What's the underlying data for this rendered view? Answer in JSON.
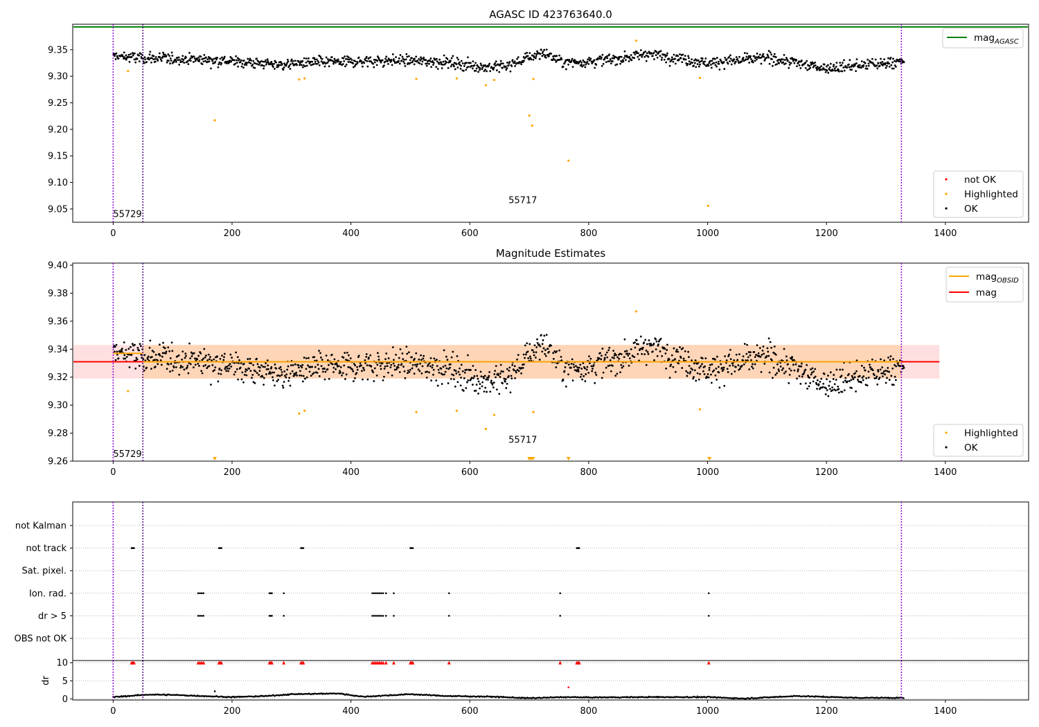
{
  "chart_data": [
    {
      "type": "scatter",
      "title": "AGASC ID 423763640.0",
      "xlim": [
        -68,
        1540
      ],
      "ylim": [
        9.025,
        9.398
      ],
      "x_ticks": [
        0,
        200,
        400,
        600,
        800,
        1000,
        1200,
        1400
      ],
      "y_ticks": [
        9.05,
        9.1,
        9.15,
        9.2,
        9.25,
        9.3,
        9.35
      ],
      "y_tick_labels": [
        "9.05",
        "9.10",
        "9.15",
        "9.20",
        "9.25",
        "9.30",
        "9.35"
      ],
      "lines": [
        {
          "name": "mag_AGASC",
          "y": 9.393,
          "x_range": [
            -68,
            1540
          ],
          "color": "#008000"
        }
      ],
      "vlines": [
        {
          "x": 0,
          "color": "#9400d3"
        },
        {
          "x": 50,
          "color": "#4b0082"
        },
        {
          "x": 1326,
          "color": "#9400d3"
        }
      ],
      "annotations": [
        {
          "text": "55729",
          "x": 0,
          "y": 9.04
        },
        {
          "text": "55717",
          "x": 665,
          "y": 9.066
        }
      ],
      "legend": {
        "location": "top-right, bottom-right",
        "line_entries": [
          {
            "label": "mag",
            "sub": "AGASC",
            "color": "#008000"
          }
        ],
        "marker_entries": [
          {
            "label": "not OK",
            "color": "#ff0000"
          },
          {
            "label": "Highlighted",
            "color": "#ffa500"
          },
          {
            "label": "OK",
            "color": "#000000"
          }
        ]
      },
      "series": [
        {
          "name": "OK",
          "color": "#000000",
          "x_range": [
            0,
            1330
          ],
          "baseline": [
            [
              0,
              9.338
            ],
            [
              50,
              9.334
            ],
            [
              150,
              9.332
            ],
            [
              280,
              9.322
            ],
            [
              330,
              9.326
            ],
            [
              480,
              9.33
            ],
            [
              560,
              9.327
            ],
            [
              620,
              9.318
            ],
            [
              660,
              9.318
            ],
            [
              720,
              9.345
            ],
            [
              760,
              9.325
            ],
            [
              850,
              9.333
            ],
            [
              900,
              9.343
            ],
            [
              1000,
              9.325
            ],
            [
              1100,
              9.335
            ],
            [
              1200,
              9.315
            ],
            [
              1330,
              9.328
            ]
          ],
          "scatter_sd": 0.009
        },
        {
          "name": "Highlighted",
          "color": "#ffa500",
          "points": [
            [
              25,
              9.31
            ],
            [
              171,
              9.217
            ],
            [
              313,
              9.294
            ],
            [
              322,
              9.296
            ],
            [
              510,
              9.295
            ],
            [
              578,
              9.296
            ],
            [
              627,
              9.283
            ],
            [
              641,
              9.293
            ],
            [
              700,
              9.226
            ],
            [
              705,
              9.207
            ],
            [
              707,
              9.295
            ],
            [
              766,
              9.141
            ],
            [
              880,
              9.367
            ],
            [
              987,
              9.297
            ],
            [
              1001,
              9.056
            ]
          ]
        },
        {
          "name": "not OK",
          "color": "#ff0000",
          "points": []
        }
      ]
    },
    {
      "type": "scatter",
      "title": "Magnitude Estimates",
      "xlim": [
        -68,
        1540
      ],
      "ylim": [
        9.26,
        9.4015
      ],
      "x_ticks": [
        0,
        200,
        400,
        600,
        800,
        1000,
        1200,
        1400
      ],
      "y_ticks": [
        9.26,
        9.28,
        9.3,
        9.32,
        9.34,
        9.36,
        9.38,
        9.4
      ],
      "y_tick_labels": [
        "9.26",
        "9.28",
        "9.30",
        "9.32",
        "9.34",
        "9.36",
        "9.38",
        "9.40"
      ],
      "mag_line": {
        "y": 9.331,
        "x_range": [
          -68,
          1390
        ],
        "color": "#ff0000",
        "band": [
          9.319,
          9.343
        ]
      },
      "mag_obsid": [
        {
          "y": 9.337,
          "x_range": [
            0,
            50
          ],
          "color": "#ffa500"
        },
        {
          "y": 9.331,
          "x_range": [
            50,
            1326
          ],
          "color": "#ffa500",
          "band": [
            9.319,
            9.343
          ]
        }
      ],
      "vlines": [
        {
          "x": 0,
          "color": "#9400d3"
        },
        {
          "x": 50,
          "color": "#4b0082"
        },
        {
          "x": 1326,
          "color": "#9400d3"
        }
      ],
      "annotations": [
        {
          "text": "55729",
          "x": 0,
          "y": 9.265
        },
        {
          "text": "55717",
          "x": 665,
          "y": 9.275
        }
      ],
      "legend": {
        "location": "top-right, bottom-right",
        "line_entries": [
          {
            "label": "mag",
            "sub": "OBSID",
            "color": "#ffa500"
          },
          {
            "label": "mag",
            "sub": "",
            "color": "#ff0000"
          }
        ],
        "marker_entries": [
          {
            "label": "Highlighted",
            "color": "#ffa500"
          },
          {
            "label": "OK",
            "color": "#000000"
          }
        ]
      },
      "offscale_markers": [
        171,
        700,
        703,
        706,
        766,
        1003
      ]
    },
    {
      "type": "scatter",
      "title": "",
      "xlim": [
        -68,
        1540
      ],
      "ylim": [
        0,
        7
      ],
      "x_ticks": [
        0,
        200,
        400,
        600,
        800,
        1000,
        1200,
        1400
      ],
      "category_labels": [
        "not Kalman",
        "not track",
        "Sat. pixel.",
        "Ion. rad.",
        "dr > 5",
        "OBS not OK"
      ],
      "flags": {
        "not track": [
          31,
          33,
          35,
          178,
          180,
          182,
          316,
          318,
          320,
          500,
          502,
          504,
          780,
          782,
          784
        ],
        "Ion. rad.": [
          143,
          146,
          149,
          152,
          263,
          265,
          267,
          287,
          436,
          439,
          442,
          445,
          448,
          451,
          454,
          459,
          472,
          565,
          752,
          1002
        ],
        "dr > 5": [
          143,
          146,
          149,
          152,
          263,
          265,
          267,
          287,
          436,
          439,
          442,
          445,
          448,
          451,
          454,
          459,
          472,
          565,
          752,
          1002
        ]
      },
      "vlines": [
        {
          "x": 0,
          "color": "#9400d3"
        },
        {
          "x": 50,
          "color": "#4b0082"
        },
        {
          "x": 1326,
          "color": "#9400d3"
        }
      ]
    },
    {
      "type": "scatter",
      "ylabel": "dr",
      "xlim": [
        -68,
        1540
      ],
      "ylim": [
        -0.3,
        10.6
      ],
      "x_ticks": [
        0,
        200,
        400,
        600,
        800,
        1000,
        1200,
        1400
      ],
      "y_ticks": [
        0,
        5,
        10
      ],
      "y_tick_labels": [
        "0",
        "5",
        "10"
      ],
      "dr_values": {
        "x_range": [
          0,
          1330
        ],
        "baseline": [
          [
            0,
            0.5
          ],
          [
            60,
            1.2
          ],
          [
            100,
            1.1
          ],
          [
            200,
            0.5
          ],
          [
            260,
            0.8
          ],
          [
            300,
            1.3
          ],
          [
            380,
            1.5
          ],
          [
            420,
            0.6
          ],
          [
            500,
            1.3
          ],
          [
            560,
            0.8
          ],
          [
            640,
            0.6
          ],
          [
            700,
            0.2
          ],
          [
            760,
            0.5
          ],
          [
            800,
            0.4
          ],
          [
            900,
            0.5
          ],
          [
            1000,
            0.5
          ],
          [
            1060,
            0.1
          ],
          [
            1150,
            0.8
          ],
          [
            1250,
            0.3
          ],
          [
            1330,
            0.3
          ]
        ]
      },
      "capped_markers": {
        "y": 10,
        "color": "#ff0000",
        "x": [
          31,
          33,
          35,
          143,
          146,
          149,
          152,
          178,
          180,
          182,
          263,
          265,
          267,
          287,
          316,
          318,
          320,
          436,
          439,
          442,
          445,
          448,
          451,
          454,
          459,
          472,
          500,
          502,
          504,
          565,
          752,
          780,
          782,
          784,
          1002
        ]
      },
      "extra_points": [
        {
          "x": 766,
          "y": 3.2,
          "color": "#ff0000"
        },
        {
          "x": 171,
          "y": 2.1,
          "color": "#000000"
        }
      ],
      "vlines": [
        {
          "x": 0,
          "color": "#9400d3"
        },
        {
          "x": 50,
          "color": "#4b0082"
        },
        {
          "x": 1326,
          "color": "#9400d3"
        }
      ]
    }
  ]
}
